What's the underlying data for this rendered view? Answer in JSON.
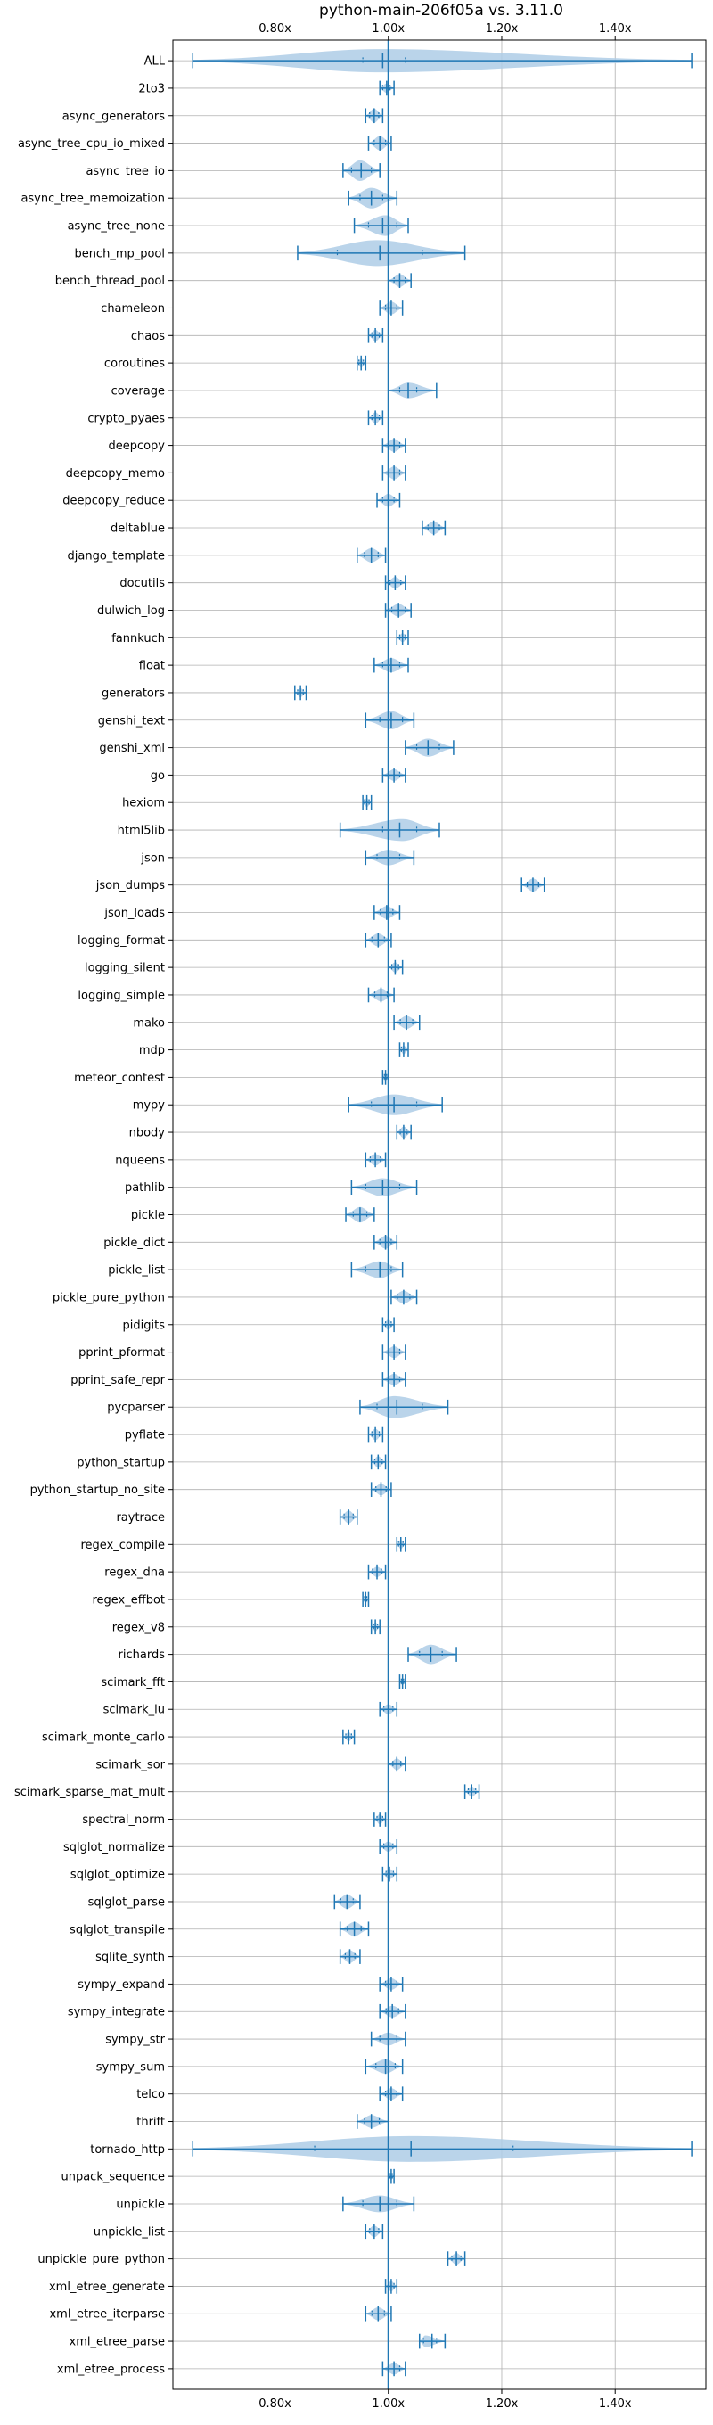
{
  "chart_data": {
    "type": "violin",
    "title": "python-main-206f05a vs. 3.11.0",
    "xlabel": "",
    "ylabel": "",
    "xlim": [
      0.62,
      1.56
    ],
    "x_ticks": [
      0.8,
      1.0,
      1.2,
      1.4
    ],
    "x_tick_labels": [
      "0.80x",
      "1.00x",
      "1.20x",
      "1.40x"
    ],
    "reference_line": 1.0,
    "grid": true,
    "colors": {
      "violin_fill": "#aecde6",
      "line": "#1f77b4"
    },
    "benchmarks": [
      {
        "name": "ALL",
        "min": 0.655,
        "max": 1.535,
        "mean": 0.99,
        "median": 0.985,
        "q1": 0.955,
        "q3": 1.03,
        "width": 0.9
      },
      {
        "name": "2to3",
        "min": 0.985,
        "max": 1.01,
        "mean": 0.997,
        "median": 0.996,
        "q1": 0.99,
        "q3": 1.003,
        "width": 0.35
      },
      {
        "name": "async_generators",
        "min": 0.96,
        "max": 0.99,
        "mean": 0.975,
        "median": 0.975,
        "q1": 0.967,
        "q3": 0.983,
        "width": 0.55
      },
      {
        "name": "async_tree_cpu_io_mixed",
        "min": 0.965,
        "max": 1.005,
        "mean": 0.985,
        "median": 0.985,
        "q1": 0.975,
        "q3": 0.995,
        "width": 0.55
      },
      {
        "name": "async_tree_io",
        "min": 0.92,
        "max": 0.985,
        "mean": 0.952,
        "median": 0.95,
        "q1": 0.935,
        "q3": 0.97,
        "width": 0.8
      },
      {
        "name": "async_tree_memoization",
        "min": 0.93,
        "max": 1.015,
        "mean": 0.97,
        "median": 0.97,
        "q1": 0.95,
        "q3": 0.99,
        "width": 0.8
      },
      {
        "name": "async_tree_none",
        "min": 0.94,
        "max": 1.035,
        "mean": 0.99,
        "median": 0.995,
        "q1": 0.965,
        "q3": 1.015,
        "width": 0.8
      },
      {
        "name": "bench_mp_pool",
        "min": 0.84,
        "max": 1.135,
        "mean": 0.985,
        "median": 0.98,
        "q1": 0.91,
        "q3": 1.06,
        "width": 1.0
      },
      {
        "name": "bench_thread_pool",
        "min": 1.0,
        "max": 1.04,
        "mean": 1.02,
        "median": 1.02,
        "q1": 1.01,
        "q3": 1.03,
        "width": 0.5
      },
      {
        "name": "chameleon",
        "min": 0.985,
        "max": 1.025,
        "mean": 1.005,
        "median": 1.005,
        "q1": 0.995,
        "q3": 1.015,
        "width": 0.5
      },
      {
        "name": "chaos",
        "min": 0.965,
        "max": 0.99,
        "mean": 0.977,
        "median": 0.977,
        "q1": 0.971,
        "q3": 0.984,
        "width": 0.45
      },
      {
        "name": "coroutines",
        "min": 0.945,
        "max": 0.96,
        "mean": 0.952,
        "median": 0.952,
        "q1": 0.948,
        "q3": 0.956,
        "width": 0.35
      },
      {
        "name": "coverage",
        "min": 1.0,
        "max": 1.085,
        "mean": 1.035,
        "median": 1.035,
        "q1": 1.02,
        "q3": 1.05,
        "width": 0.6
      },
      {
        "name": "crypto_pyaes",
        "min": 0.965,
        "max": 0.99,
        "mean": 0.977,
        "median": 0.977,
        "q1": 0.971,
        "q3": 0.984,
        "width": 0.45
      },
      {
        "name": "deepcopy",
        "min": 0.99,
        "max": 1.03,
        "mean": 1.01,
        "median": 1.01,
        "q1": 1.0,
        "q3": 1.02,
        "width": 0.5
      },
      {
        "name": "deepcopy_memo",
        "min": 0.99,
        "max": 1.03,
        "mean": 1.01,
        "median": 1.01,
        "q1": 1.0,
        "q3": 1.02,
        "width": 0.5
      },
      {
        "name": "deepcopy_reduce",
        "min": 0.98,
        "max": 1.02,
        "mean": 1.0,
        "median": 1.0,
        "q1": 0.99,
        "q3": 1.01,
        "width": 0.5
      },
      {
        "name": "deltablue",
        "min": 1.06,
        "max": 1.1,
        "mean": 1.08,
        "median": 1.08,
        "q1": 1.07,
        "q3": 1.09,
        "width": 0.5
      },
      {
        "name": "django_template",
        "min": 0.945,
        "max": 0.995,
        "mean": 0.97,
        "median": 0.97,
        "q1": 0.958,
        "q3": 0.982,
        "width": 0.55
      },
      {
        "name": "docutils",
        "min": 0.995,
        "max": 1.03,
        "mean": 1.012,
        "median": 1.012,
        "q1": 1.003,
        "q3": 1.022,
        "width": 0.45
      },
      {
        "name": "dulwich_log",
        "min": 0.995,
        "max": 1.04,
        "mean": 1.018,
        "median": 1.018,
        "q1": 1.006,
        "q3": 1.03,
        "width": 0.5
      },
      {
        "name": "fannkuch",
        "min": 1.015,
        "max": 1.035,
        "mean": 1.025,
        "median": 1.025,
        "q1": 1.02,
        "q3": 1.03,
        "width": 0.35
      },
      {
        "name": "float",
        "min": 0.975,
        "max": 1.035,
        "mean": 1.005,
        "median": 1.005,
        "q1": 0.99,
        "q3": 1.02,
        "width": 0.55
      },
      {
        "name": "generators",
        "min": 0.835,
        "max": 0.855,
        "mean": 0.845,
        "median": 0.845,
        "q1": 0.84,
        "q3": 0.85,
        "width": 0.35
      },
      {
        "name": "genshi_text",
        "min": 0.96,
        "max": 1.045,
        "mean": 1.005,
        "median": 1.005,
        "q1": 0.985,
        "q3": 1.025,
        "width": 0.7
      },
      {
        "name": "genshi_xml",
        "min": 1.03,
        "max": 1.115,
        "mean": 1.07,
        "median": 1.07,
        "q1": 1.05,
        "q3": 1.09,
        "width": 0.7
      },
      {
        "name": "go",
        "min": 0.99,
        "max": 1.03,
        "mean": 1.01,
        "median": 1.01,
        "q1": 1.0,
        "q3": 1.02,
        "width": 0.45
      },
      {
        "name": "hexiom",
        "min": 0.955,
        "max": 0.97,
        "mean": 0.962,
        "median": 0.962,
        "q1": 0.958,
        "q3": 0.966,
        "width": 0.35
      },
      {
        "name": "html5lib",
        "min": 0.915,
        "max": 1.09,
        "mean": 1.02,
        "median": 1.025,
        "q1": 0.99,
        "q3": 1.05,
        "width": 0.85
      },
      {
        "name": "json",
        "min": 0.96,
        "max": 1.045,
        "mean": 1.0,
        "median": 1.0,
        "q1": 0.98,
        "q3": 1.02,
        "width": 0.6
      },
      {
        "name": "json_dumps",
        "min": 1.235,
        "max": 1.275,
        "mean": 1.255,
        "median": 1.255,
        "q1": 1.245,
        "q3": 1.265,
        "width": 0.5
      },
      {
        "name": "json_loads",
        "min": 0.975,
        "max": 1.02,
        "mean": 0.997,
        "median": 0.997,
        "q1": 0.986,
        "q3": 1.008,
        "width": 0.5
      },
      {
        "name": "logging_format",
        "min": 0.96,
        "max": 1.005,
        "mean": 0.982,
        "median": 0.982,
        "q1": 0.971,
        "q3": 0.993,
        "width": 0.5
      },
      {
        "name": "logging_silent",
        "min": 1.0,
        "max": 1.025,
        "mean": 1.012,
        "median": 1.012,
        "q1": 1.006,
        "q3": 1.018,
        "width": 0.4
      },
      {
        "name": "logging_simple",
        "min": 0.965,
        "max": 1.01,
        "mean": 0.987,
        "median": 0.987,
        "q1": 0.976,
        "q3": 0.998,
        "width": 0.5
      },
      {
        "name": "mako",
        "min": 1.01,
        "max": 1.055,
        "mean": 1.032,
        "median": 1.032,
        "q1": 1.021,
        "q3": 1.043,
        "width": 0.5
      },
      {
        "name": "mdp",
        "min": 1.02,
        "max": 1.035,
        "mean": 1.027,
        "median": 1.027,
        "q1": 1.023,
        "q3": 1.031,
        "width": 0.35
      },
      {
        "name": "meteor_contest",
        "min": 0.99,
        "max": 1.0,
        "mean": 0.995,
        "median": 0.995,
        "q1": 0.993,
        "q3": 0.997,
        "width": 0.3
      },
      {
        "name": "mypy",
        "min": 0.93,
        "max": 1.095,
        "mean": 1.01,
        "median": 1.01,
        "q1": 0.97,
        "q3": 1.05,
        "width": 0.8
      },
      {
        "name": "nbody",
        "min": 1.015,
        "max": 1.04,
        "mean": 1.027,
        "median": 1.027,
        "q1": 1.021,
        "q3": 1.033,
        "width": 0.45
      },
      {
        "name": "nqueens",
        "min": 0.96,
        "max": 0.995,
        "mean": 0.977,
        "median": 0.977,
        "q1": 0.968,
        "q3": 0.986,
        "width": 0.45
      },
      {
        "name": "pathlib",
        "min": 0.935,
        "max": 1.05,
        "mean": 0.99,
        "median": 0.99,
        "q1": 0.96,
        "q3": 1.02,
        "width": 0.7
      },
      {
        "name": "pickle",
        "min": 0.925,
        "max": 0.975,
        "mean": 0.95,
        "median": 0.95,
        "q1": 0.938,
        "q3": 0.962,
        "width": 0.6
      },
      {
        "name": "pickle_dict",
        "min": 0.975,
        "max": 1.015,
        "mean": 0.995,
        "median": 0.995,
        "q1": 0.985,
        "q3": 1.005,
        "width": 0.5
      },
      {
        "name": "pickle_list",
        "min": 0.935,
        "max": 1.025,
        "mean": 0.985,
        "median": 0.985,
        "q1": 0.96,
        "q3": 1.005,
        "width": 0.65
      },
      {
        "name": "pickle_pure_python",
        "min": 1.005,
        "max": 1.05,
        "mean": 1.027,
        "median": 1.027,
        "q1": 1.016,
        "q3": 1.038,
        "width": 0.5
      },
      {
        "name": "pidigits",
        "min": 0.99,
        "max": 1.01,
        "mean": 1.0,
        "median": 1.0,
        "q1": 0.995,
        "q3": 1.005,
        "width": 0.4
      },
      {
        "name": "pprint_pformat",
        "min": 0.99,
        "max": 1.03,
        "mean": 1.01,
        "median": 1.01,
        "q1": 1.0,
        "q3": 1.02,
        "width": 0.45
      },
      {
        "name": "pprint_safe_repr",
        "min": 0.99,
        "max": 1.03,
        "mean": 1.01,
        "median": 1.01,
        "q1": 1.0,
        "q3": 1.02,
        "width": 0.45
      },
      {
        "name": "pycparser",
        "min": 0.95,
        "max": 1.105,
        "mean": 1.015,
        "median": 1.01,
        "q1": 0.98,
        "q3": 1.06,
        "width": 0.85
      },
      {
        "name": "pyflate",
        "min": 0.965,
        "max": 0.99,
        "mean": 0.977,
        "median": 0.977,
        "q1": 0.971,
        "q3": 0.984,
        "width": 0.45
      },
      {
        "name": "python_startup",
        "min": 0.97,
        "max": 0.995,
        "mean": 0.982,
        "median": 0.982,
        "q1": 0.976,
        "q3": 0.989,
        "width": 0.45
      },
      {
        "name": "python_startup_no_site",
        "min": 0.97,
        "max": 1.005,
        "mean": 0.987,
        "median": 0.987,
        "q1": 0.978,
        "q3": 0.996,
        "width": 0.45
      },
      {
        "name": "raytrace",
        "min": 0.915,
        "max": 0.945,
        "mean": 0.93,
        "median": 0.93,
        "q1": 0.922,
        "q3": 0.938,
        "width": 0.5
      },
      {
        "name": "regex_compile",
        "min": 1.015,
        "max": 1.03,
        "mean": 1.022,
        "median": 1.022,
        "q1": 1.018,
        "q3": 1.026,
        "width": 0.35
      },
      {
        "name": "regex_dna",
        "min": 0.965,
        "max": 0.995,
        "mean": 0.98,
        "median": 0.98,
        "q1": 0.972,
        "q3": 0.988,
        "width": 0.4
      },
      {
        "name": "regex_effbot",
        "min": 0.955,
        "max": 0.965,
        "mean": 0.96,
        "median": 0.96,
        "q1": 0.958,
        "q3": 0.962,
        "width": 0.3
      },
      {
        "name": "regex_v8",
        "min": 0.97,
        "max": 0.985,
        "mean": 0.977,
        "median": 0.977,
        "q1": 0.974,
        "q3": 0.981,
        "width": 0.35
      },
      {
        "name": "richards",
        "min": 1.035,
        "max": 1.12,
        "mean": 1.075,
        "median": 1.075,
        "q1": 1.055,
        "q3": 1.095,
        "width": 0.75
      },
      {
        "name": "scimark_fft",
        "min": 1.02,
        "max": 1.03,
        "mean": 1.025,
        "median": 1.025,
        "q1": 1.023,
        "q3": 1.027,
        "width": 0.3
      },
      {
        "name": "scimark_lu",
        "min": 0.985,
        "max": 1.015,
        "mean": 1.0,
        "median": 1.0,
        "q1": 0.992,
        "q3": 1.008,
        "width": 0.4
      },
      {
        "name": "scimark_monte_carlo",
        "min": 0.92,
        "max": 0.94,
        "mean": 0.93,
        "median": 0.93,
        "q1": 0.925,
        "q3": 0.935,
        "width": 0.35
      },
      {
        "name": "scimark_sor",
        "min": 1.0,
        "max": 1.03,
        "mean": 1.015,
        "median": 1.015,
        "q1": 1.008,
        "q3": 1.022,
        "width": 0.45
      },
      {
        "name": "scimark_sparse_mat_mult",
        "min": 1.135,
        "max": 1.16,
        "mean": 1.147,
        "median": 1.147,
        "q1": 1.141,
        "q3": 1.154,
        "width": 0.4
      },
      {
        "name": "spectral_norm",
        "min": 0.975,
        "max": 0.995,
        "mean": 0.985,
        "median": 0.985,
        "q1": 0.98,
        "q3": 0.99,
        "width": 0.4
      },
      {
        "name": "sqlglot_normalize",
        "min": 0.985,
        "max": 1.015,
        "mean": 1.0,
        "median": 1.0,
        "q1": 0.992,
        "q3": 1.008,
        "width": 0.4
      },
      {
        "name": "sqlglot_optimize",
        "min": 0.99,
        "max": 1.015,
        "mean": 1.002,
        "median": 1.002,
        "q1": 0.996,
        "q3": 1.009,
        "width": 0.4
      },
      {
        "name": "sqlglot_parse",
        "min": 0.905,
        "max": 0.95,
        "mean": 0.927,
        "median": 0.927,
        "q1": 0.916,
        "q3": 0.938,
        "width": 0.55
      },
      {
        "name": "sqlglot_transpile",
        "min": 0.915,
        "max": 0.965,
        "mean": 0.94,
        "median": 0.94,
        "q1": 0.928,
        "q3": 0.952,
        "width": 0.55
      },
      {
        "name": "sqlite_synth",
        "min": 0.915,
        "max": 0.95,
        "mean": 0.932,
        "median": 0.932,
        "q1": 0.924,
        "q3": 0.941,
        "width": 0.5
      },
      {
        "name": "sympy_expand",
        "min": 0.985,
        "max": 1.025,
        "mean": 1.005,
        "median": 1.005,
        "q1": 0.995,
        "q3": 1.015,
        "width": 0.45
      },
      {
        "name": "sympy_integrate",
        "min": 0.985,
        "max": 1.03,
        "mean": 1.007,
        "median": 1.007,
        "q1": 0.996,
        "q3": 1.018,
        "width": 0.45
      },
      {
        "name": "sympy_str",
        "min": 0.97,
        "max": 1.03,
        "mean": 1.0,
        "median": 1.0,
        "q1": 0.985,
        "q3": 1.015,
        "width": 0.5
      },
      {
        "name": "sympy_sum",
        "min": 0.96,
        "max": 1.025,
        "mean": 0.995,
        "median": 0.995,
        "q1": 0.978,
        "q3": 1.012,
        "width": 0.55
      },
      {
        "name": "telco",
        "min": 0.985,
        "max": 1.025,
        "mean": 1.005,
        "median": 1.005,
        "q1": 0.995,
        "q3": 1.015,
        "width": 0.45
      },
      {
        "name": "thrift",
        "min": 0.945,
        "max": 1.0,
        "mean": 0.97,
        "median": 0.97,
        "q1": 0.958,
        "q3": 0.984,
        "width": 0.5
      },
      {
        "name": "tornado_http",
        "min": 0.655,
        "max": 1.535,
        "mean": 1.04,
        "median": 1.04,
        "q1": 0.87,
        "q3": 1.22,
        "width": 1.0
      },
      {
        "name": "unpack_sequence",
        "min": 1.0,
        "max": 1.01,
        "mean": 1.005,
        "median": 1.005,
        "q1": 1.003,
        "q3": 1.007,
        "width": 0.3
      },
      {
        "name": "unpickle",
        "min": 0.92,
        "max": 1.045,
        "mean": 0.985,
        "median": 0.985,
        "q1": 0.955,
        "q3": 1.015,
        "width": 0.65
      },
      {
        "name": "unpickle_list",
        "min": 0.96,
        "max": 0.99,
        "mean": 0.975,
        "median": 0.975,
        "q1": 0.967,
        "q3": 0.983,
        "width": 0.45
      },
      {
        "name": "unpickle_pure_python",
        "min": 1.105,
        "max": 1.135,
        "mean": 1.12,
        "median": 1.12,
        "q1": 1.112,
        "q3": 1.128,
        "width": 0.45
      },
      {
        "name": "xml_etree_generate",
        "min": 0.995,
        "max": 1.015,
        "mean": 1.005,
        "median": 1.005,
        "q1": 1.0,
        "q3": 1.01,
        "width": 0.4
      },
      {
        "name": "xml_etree_iterparse",
        "min": 0.96,
        "max": 1.005,
        "mean": 0.982,
        "median": 0.982,
        "q1": 0.971,
        "q3": 0.993,
        "width": 0.5
      },
      {
        "name": "xml_etree_parse",
        "min": 1.055,
        "max": 1.1,
        "mean": 1.077,
        "median": 1.065,
        "q1": 1.062,
        "q3": 1.085,
        "width": 0.45
      },
      {
        "name": "xml_etree_process",
        "min": 0.99,
        "max": 1.03,
        "mean": 1.01,
        "median": 1.01,
        "q1": 1.0,
        "q3": 1.02,
        "width": 0.45
      }
    ]
  }
}
